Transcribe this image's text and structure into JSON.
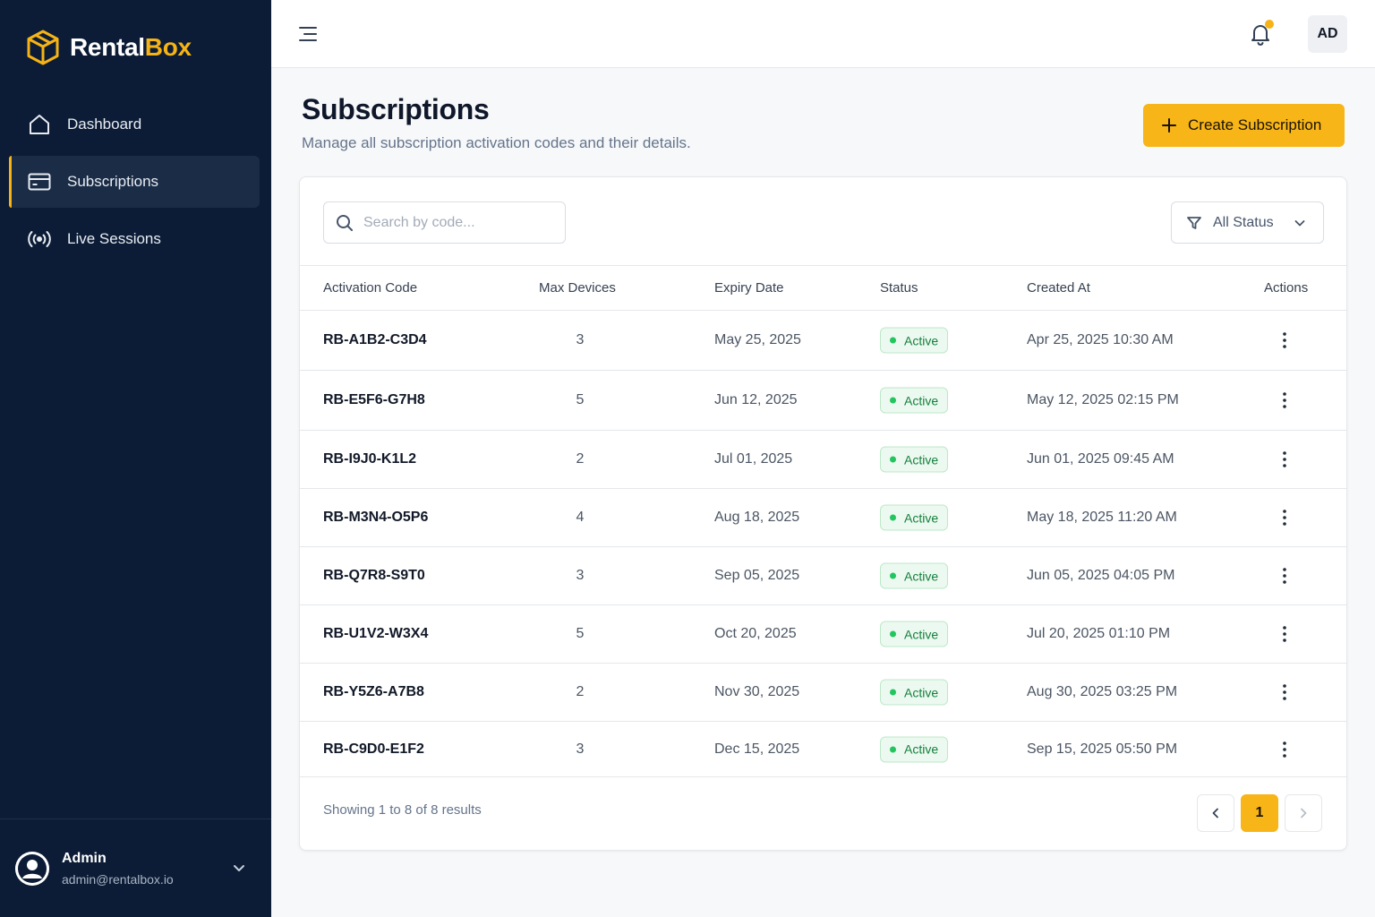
{
  "brand": {
    "name_part1": "Rental",
    "name_part2": "Box",
    "logo_icon": "box-icon",
    "accent": "#f5b316"
  },
  "sidebar": {
    "items": [
      {
        "label": "Dashboard",
        "icon": "home-icon",
        "active": false
      },
      {
        "label": "Subscriptions",
        "icon": "card-icon",
        "active": true
      },
      {
        "label": "Live Sessions",
        "icon": "broadcast-icon",
        "active": false
      }
    ],
    "user": {
      "name": "Admin",
      "email": "admin@rentalbox.io"
    }
  },
  "topbar": {
    "avatar_initials": "AD"
  },
  "header": {
    "title": "Subscriptions",
    "subtitle": "Manage all subscription activation codes and their details.",
    "create_label": "Create Subscription"
  },
  "filters": {
    "search_placeholder": "Search by code...",
    "status_value": "All Status"
  },
  "table": {
    "columns": [
      "Activation Code",
      "Max Devices",
      "Expiry Date",
      "Status",
      "Created At",
      "Actions"
    ],
    "rows": [
      {
        "code": "RB-A1B2-C3D4",
        "devices": "3",
        "expiry": "May 25, 2025",
        "status": "Active",
        "created": "Apr 25, 2025 10:30 AM"
      },
      {
        "code": "RB-E5F6-G7H8",
        "devices": "5",
        "expiry": "Jun 12, 2025",
        "status": "Active",
        "created": "May 12, 2025 02:15 PM"
      },
      {
        "code": "RB-I9J0-K1L2",
        "devices": "2",
        "expiry": "Jul 01, 2025",
        "status": "Active",
        "created": "Jun 01, 2025 09:45 AM"
      },
      {
        "code": "RB-M3N4-O5P6",
        "devices": "4",
        "expiry": "Aug 18, 2025",
        "status": "Active",
        "created": "May 18, 2025 11:20 AM"
      },
      {
        "code": "RB-Q7R8-S9T0",
        "devices": "3",
        "expiry": "Sep 05, 2025",
        "status": "Active",
        "created": "Jun 05, 2025 04:05 PM"
      },
      {
        "code": "RB-U1V2-W3X4",
        "devices": "5",
        "expiry": "Oct 20, 2025",
        "status": "Active",
        "created": "Jul 20, 2025 01:10 PM"
      },
      {
        "code": "RB-Y5Z6-A7B8",
        "devices": "2",
        "expiry": "Nov 30, 2025",
        "status": "Active",
        "created": "Aug 30, 2025 03:25 PM"
      },
      {
        "code": "RB-C9D0-E1F2",
        "devices": "3",
        "expiry": "Dec 15, 2025",
        "status": "Active",
        "created": "Sep 15, 2025 05:50 PM"
      }
    ]
  },
  "pagination": {
    "summary": "Showing 1 to 8 of 8 results",
    "current_page": "1"
  },
  "colors": {
    "sidebar_bg": "#0c1c36",
    "accent": "#f7b517",
    "status_active": "#15803d"
  }
}
